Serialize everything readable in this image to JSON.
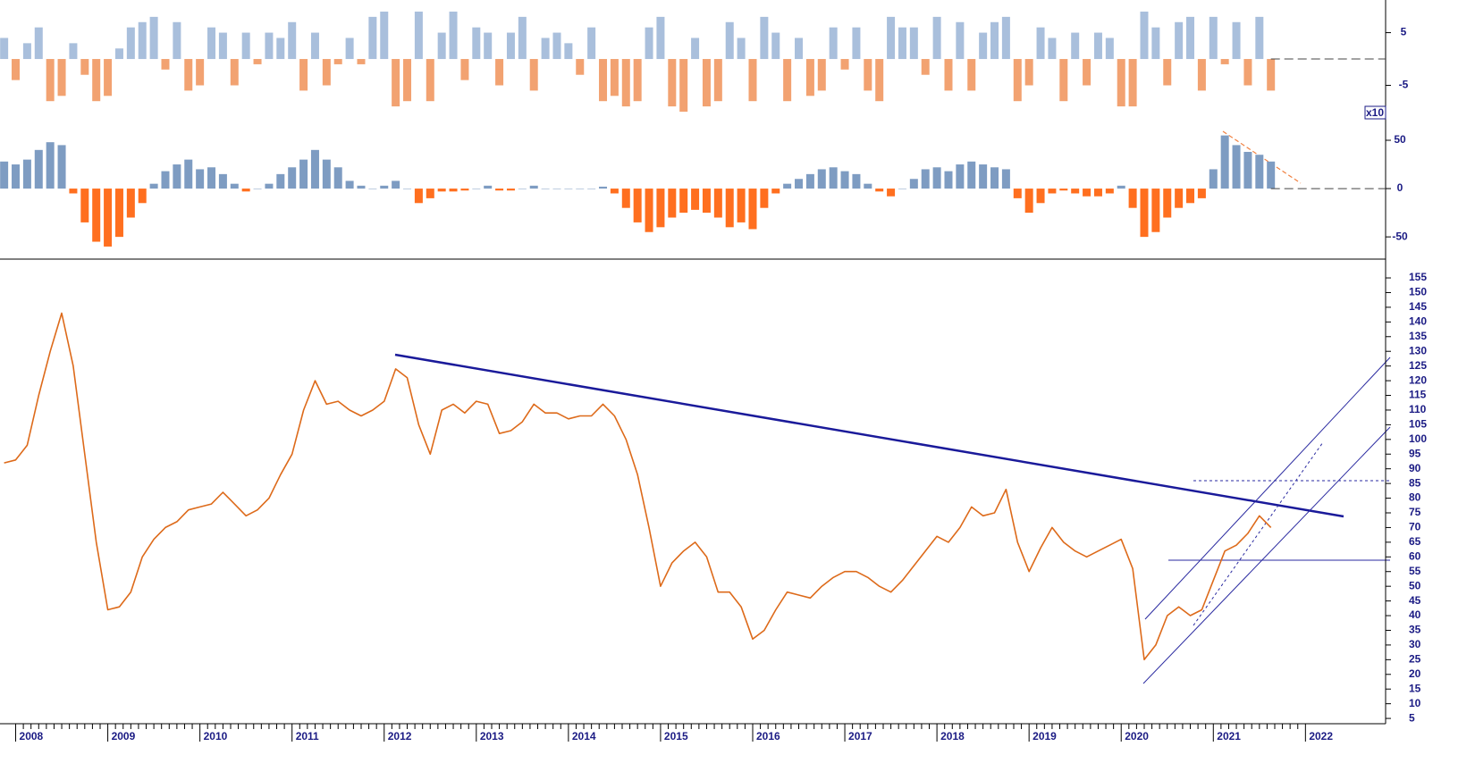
{
  "chart_data": {
    "type": "stock",
    "x": [
      2007.875,
      2008,
      2008.125,
      2008.25,
      2008.375,
      2008.5,
      2008.625,
      2008.75,
      2008.875,
      2009,
      2009.125,
      2009.25,
      2009.375,
      2009.5,
      2009.625,
      2009.75,
      2009.875,
      2010,
      2010.125,
      2010.25,
      2010.375,
      2010.5,
      2010.625,
      2010.75,
      2010.875,
      2011,
      2011.125,
      2011.25,
      2011.375,
      2011.5,
      2011.625,
      2011.75,
      2011.875,
      2012,
      2012.125,
      2012.25,
      2012.375,
      2012.5,
      2012.625,
      2012.75,
      2012.875,
      2013,
      2013.125,
      2013.25,
      2013.375,
      2013.5,
      2013.625,
      2013.75,
      2013.875,
      2014,
      2014.125,
      2014.25,
      2014.375,
      2014.5,
      2014.625,
      2014.75,
      2014.875,
      2015,
      2015.125,
      2015.25,
      2015.375,
      2015.5,
      2015.625,
      2015.75,
      2015.875,
      2016,
      2016.125,
      2016.25,
      2016.375,
      2016.5,
      2016.625,
      2016.75,
      2016.875,
      2017,
      2017.125,
      2017.25,
      2017.375,
      2017.5,
      2017.625,
      2017.75,
      2017.875,
      2018,
      2018.125,
      2018.25,
      2018.375,
      2018.5,
      2018.625,
      2018.75,
      2018.875,
      2019,
      2019.125,
      2019.25,
      2019.375,
      2019.5,
      2019.625,
      2019.75,
      2019.875,
      2020,
      2020.125,
      2020.25,
      2020.375,
      2020.5,
      2020.625,
      2020.75,
      2020.875,
      2021,
      2021.125,
      2021.25,
      2021.375,
      2021.5,
      2021.625
    ],
    "xlim": [
      2007.83,
      2022.87
    ],
    "xticks": [
      2008,
      2009,
      2010,
      2011,
      2012,
      2013,
      2014,
      2015,
      2016,
      2017,
      2018,
      2019,
      2020,
      2021,
      2022
    ],
    "panels": [
      {
        "type": "bar",
        "positive_color": "#a9bfdc",
        "negative_color": "#f2a271",
        "ylim": [
          -10,
          11.2
        ],
        "yticks": [
          5,
          -5
        ],
        "values": [
          4,
          -4,
          3,
          6,
          -8,
          -7,
          3,
          -3,
          -8,
          -7,
          2,
          6,
          7,
          8,
          -2,
          7,
          -6,
          -5,
          6,
          5,
          -5,
          5,
          -1,
          5,
          4,
          7,
          -6,
          5,
          -5,
          -1,
          4,
          -1,
          8,
          9,
          -9,
          -8,
          9,
          -8,
          5,
          9,
          -4,
          6,
          5,
          -5,
          5,
          8,
          -6,
          4,
          5,
          3,
          -3,
          6,
          -8,
          -7,
          -9,
          -8,
          6,
          8,
          -9,
          -10,
          4,
          -9,
          -8,
          7,
          4,
          -8,
          8,
          5,
          -8,
          4,
          -7,
          -6,
          6,
          -2,
          6,
          -6,
          -8,
          8,
          6,
          6,
          -3,
          8,
          -6,
          7,
          -6,
          5,
          7,
          8,
          -8,
          -5,
          6,
          4,
          -8,
          5,
          -5,
          5,
          4,
          -9,
          -9,
          9,
          6,
          -5,
          7,
          8,
          -6,
          8,
          -1,
          7,
          -5,
          8,
          -6
        ]
      },
      {
        "type": "bar",
        "positive_color": "#7e9cc2",
        "negative_color": "#ff6f1f",
        "ylim": [
          -73,
          79.6
        ],
        "yticks": [
          50,
          0,
          -50
        ],
        "scale_label": "x10",
        "values": [
          28,
          25,
          30,
          40,
          48,
          45,
          -5,
          -35,
          -55,
          -60,
          -50,
          -30,
          -15,
          5,
          18,
          25,
          30,
          20,
          22,
          15,
          5,
          -3,
          0,
          5,
          15,
          22,
          30,
          40,
          30,
          22,
          8,
          3,
          0,
          3,
          8,
          0,
          -15,
          -10,
          -3,
          -3,
          -2,
          0,
          3,
          -2,
          -2,
          0,
          3,
          0,
          0,
          0,
          0,
          0,
          2,
          -5,
          -20,
          -35,
          -45,
          -40,
          -30,
          -25,
          -22,
          -25,
          -30,
          -40,
          -35,
          -42,
          -20,
          -5,
          5,
          10,
          15,
          20,
          22,
          18,
          15,
          5,
          -3,
          -8,
          0,
          10,
          20,
          22,
          18,
          25,
          28,
          25,
          22,
          20,
          -10,
          -25,
          -15,
          -5,
          -2,
          -5,
          -8,
          -8,
          -5,
          3,
          -20,
          -50,
          -45,
          -30,
          -20,
          -15,
          -10,
          20,
          55,
          45,
          38,
          35,
          28
        ]
      },
      {
        "type": "line",
        "color": "#dd6a1a",
        "ylim": [
          3.2,
          161.4
        ],
        "yticks": [
          5,
          10,
          15,
          20,
          25,
          30,
          35,
          40,
          45,
          50,
          55,
          60,
          65,
          70,
          75,
          80,
          85,
          90,
          95,
          100,
          105,
          110,
          115,
          120,
          125,
          130,
          135,
          140,
          145,
          150,
          155
        ],
        "values": [
          92,
          93,
          98,
          115,
          130,
          143,
          125,
          95,
          65,
          42,
          43,
          48,
          60,
          66,
          70,
          72,
          76,
          77,
          78,
          82,
          78,
          74,
          76,
          80,
          88,
          95,
          110,
          120,
          112,
          113,
          110,
          108,
          110,
          113,
          124,
          121,
          105,
          95,
          110,
          112,
          109,
          113,
          112,
          102,
          103,
          106,
          112,
          109,
          109,
          107,
          108,
          108,
          112,
          108,
          100,
          88,
          70,
          50,
          58,
          62,
          65,
          60,
          48,
          48,
          43,
          32,
          35,
          42,
          48,
          47,
          46,
          50,
          53,
          55,
          55,
          53,
          50,
          48,
          52,
          57,
          62,
          67,
          65,
          70,
          77,
          74,
          75,
          83,
          65,
          55,
          63,
          70,
          65,
          62,
          60,
          62,
          64,
          66,
          56,
          25,
          30,
          40,
          43,
          40,
          42,
          52,
          62,
          64,
          68,
          74,
          70
        ]
      }
    ]
  }
}
